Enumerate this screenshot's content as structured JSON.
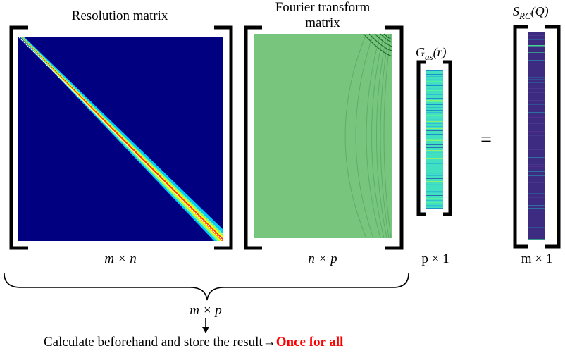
{
  "titles": {
    "resolution": "Resolution matrix",
    "fourier_line1": "Fourier transform",
    "fourier_line2": "matrix",
    "gas_base": "G",
    "gas_sub": "as",
    "gas_arg": "(r)",
    "src_base": "S",
    "src_sub": "RC",
    "src_arg": "(Q)"
  },
  "equals": "=",
  "dims": {
    "resolution": "m × n",
    "fourier": "n × p",
    "gas": "p × 1",
    "src": "m × 1",
    "product": "m × p"
  },
  "footer": {
    "main": "Calculate beforehand and store the result→",
    "highlight": "Once for all"
  },
  "colors": {
    "bracket": "#000000",
    "resolution_bg": "#000080",
    "fourier_bg": "#78c67e",
    "gas_bg": "#40e0c0",
    "src_bg": "#3d2b82",
    "highlight": "#ff0000"
  }
}
